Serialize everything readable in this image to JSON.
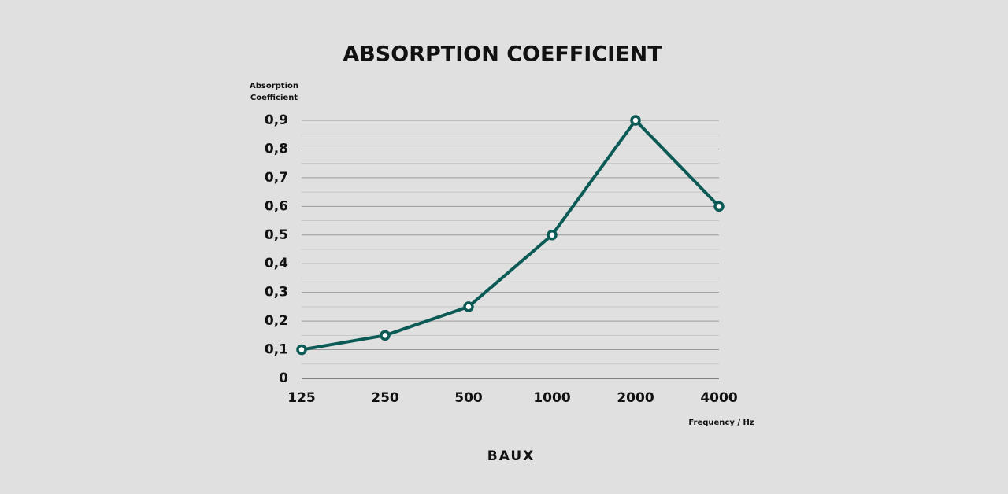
{
  "chart_data": {
    "type": "line",
    "title": "ABSORPTION COEFFICIENT",
    "ylabel": "Absorption Coefficient",
    "xlabel": "Frequency / Hz",
    "categories": [
      "125",
      "250",
      "500",
      "1000",
      "2000",
      "4000"
    ],
    "series": [
      {
        "name": "Absorption Coefficient",
        "color": "#0b5a55",
        "values": [
          0.1,
          0.15,
          0.25,
          0.5,
          0.9,
          0.6
        ]
      }
    ],
    "ylim": [
      0,
      0.9
    ],
    "yticks": [
      0,
      {
        "value": 0.1,
        "label": "0,1"
      },
      {
        "value": 0.2,
        "label": "0,2"
      },
      {
        "value": 0.3,
        "label": "0,3"
      },
      {
        "value": 0.4,
        "label": "0,4"
      },
      {
        "value": 0.5,
        "label": "0,5"
      },
      {
        "value": 0.6,
        "label": "0,6"
      },
      {
        "value": 0.7,
        "label": "0,7"
      },
      {
        "value": 0.8,
        "label": "0,8"
      },
      {
        "value": 0.9,
        "label": "0,9"
      }
    ],
    "yminorticks": [
      0.05,
      0.15,
      0.25,
      0.35,
      0.45,
      0.55,
      0.65,
      0.75,
      0.85
    ],
    "grid": true,
    "legend": false
  },
  "brand": "BAUX"
}
